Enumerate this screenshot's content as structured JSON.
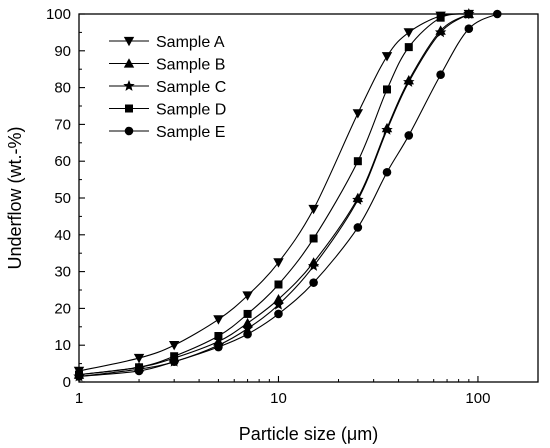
{
  "chart_data": {
    "type": "line",
    "title": "",
    "xlabel": "Particle size (μm)",
    "ylabel": "Underflow (wt.-%)",
    "xscale": "log",
    "xlim": [
      1,
      200
    ],
    "ylim": [
      0,
      100
    ],
    "xticks": [
      1,
      10,
      100
    ],
    "xtick_labels": [
      "1",
      "10",
      "100"
    ],
    "yticks": [
      0,
      10,
      20,
      30,
      40,
      50,
      60,
      70,
      80,
      90,
      100
    ],
    "ytick_labels": [
      "0",
      "10",
      "20",
      "30",
      "40",
      "50",
      "60",
      "70",
      "80",
      "90",
      "100"
    ],
    "grid": false,
    "legend_position": "top-left",
    "series": [
      {
        "name": "Sample A",
        "marker": "triangle-down",
        "x": [
          1,
          2,
          3,
          5,
          7,
          10,
          15,
          25,
          35,
          45,
          65,
          90
        ],
        "y": [
          3,
          6.5,
          10,
          17,
          23.5,
          32.5,
          47,
          73,
          88.5,
          95,
          99.5,
          100
        ]
      },
      {
        "name": "Sample B",
        "marker": "triangle-up",
        "x": [
          1,
          2,
          3,
          5,
          7,
          10,
          15,
          25,
          35,
          45,
          65,
          90
        ],
        "y": [
          2,
          4,
          6.5,
          11,
          16,
          22.5,
          32.5,
          50,
          69,
          82,
          95.5,
          100
        ]
      },
      {
        "name": "Sample C",
        "marker": "star",
        "x": [
          1,
          2,
          3,
          5,
          7,
          10,
          15,
          25,
          35,
          45,
          65,
          90
        ],
        "y": [
          1.5,
          3.5,
          5.5,
          10,
          14.5,
          21,
          31.5,
          49.5,
          68.5,
          81.5,
          95,
          100
        ]
      },
      {
        "name": "Sample D",
        "marker": "square",
        "x": [
          1,
          2,
          3,
          5,
          7,
          10,
          15,
          25,
          35,
          45,
          65,
          90
        ],
        "y": [
          2,
          4,
          7,
          12.5,
          18.5,
          26.5,
          39,
          60,
          79.5,
          91,
          99,
          100
        ]
      },
      {
        "name": "Sample E",
        "marker": "circle",
        "x": [
          1,
          2,
          3,
          5,
          7,
          10,
          15,
          25,
          35,
          45,
          65,
          90,
          125
        ],
        "y": [
          1.5,
          3,
          5.5,
          9.5,
          13,
          18.5,
          27,
          42,
          57,
          67,
          83.5,
          96,
          100
        ]
      }
    ]
  }
}
